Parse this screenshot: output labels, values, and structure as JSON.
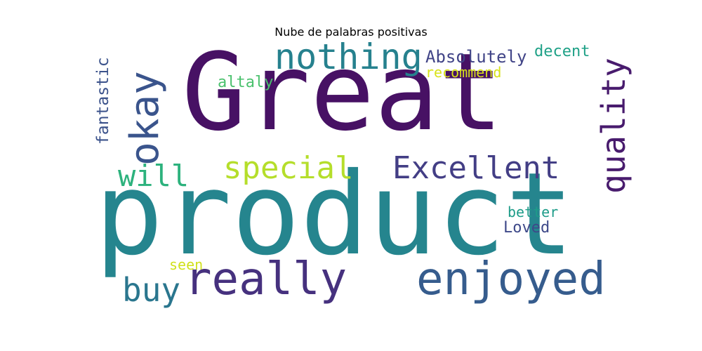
{
  "title": "Nube de palabras positivas",
  "words": [
    {
      "text": "Great",
      "color": "#471164",
      "orientation": "horizontal"
    },
    {
      "text": "product",
      "color": "#25858E",
      "orientation": "horizontal"
    },
    {
      "text": "really",
      "color": "#46317E",
      "orientation": "horizontal"
    },
    {
      "text": "enjoyed",
      "color": "#365C8D",
      "orientation": "horizontal"
    },
    {
      "text": "okay",
      "color": "#3A548C",
      "orientation": "vertical"
    },
    {
      "text": "nothing",
      "color": "#26818E",
      "orientation": "horizontal"
    },
    {
      "text": "Excellent",
      "color": "#433E85",
      "orientation": "horizontal"
    },
    {
      "text": "special",
      "color": "#B5DE2B",
      "orientation": "horizontal"
    },
    {
      "text": "will",
      "color": "#2DB27D",
      "orientation": "horizontal"
    },
    {
      "text": "quality",
      "color": "#481B6D",
      "orientation": "vertical"
    },
    {
      "text": "buy",
      "color": "#2A768E",
      "orientation": "horizontal"
    },
    {
      "text": "Absolutely",
      "color": "#414487",
      "orientation": "horizontal"
    },
    {
      "text": "decent",
      "color": "#1FA187",
      "orientation": "horizontal"
    },
    {
      "text": "recommend",
      "color": "#D8E219",
      "orientation": "horizontal"
    },
    {
      "text": "altaly",
      "color": "#4AC16D",
      "orientation": "horizontal"
    },
    {
      "text": "fantastic",
      "color": "#3B528B",
      "orientation": "vertical"
    },
    {
      "text": "better",
      "color": "#1E9C89",
      "orientation": "horizontal"
    },
    {
      "text": "Loved",
      "color": "#3E4989",
      "orientation": "horizontal"
    },
    {
      "text": "seen",
      "color": "#D0E11C",
      "orientation": "horizontal"
    }
  ]
}
